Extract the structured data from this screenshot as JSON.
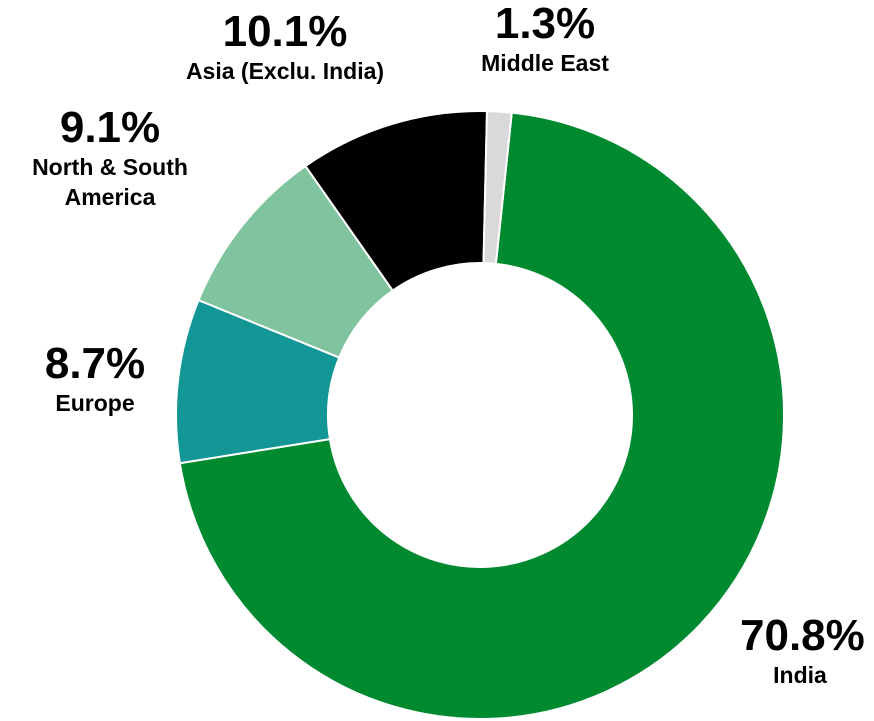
{
  "chart_data": {
    "type": "donut",
    "categories": [
      "India",
      "Europe",
      "North & South America",
      "Asia (Exclu. India)",
      "Middle East"
    ],
    "values": [
      70.8,
      8.7,
      9.1,
      10.1,
      1.3
    ],
    "value_labels": [
      "70.8%",
      "8.7%",
      "9.1%",
      "10.1%",
      "1.3%"
    ],
    "colors": [
      "#008a30",
      "#139696",
      "#80c49f",
      "#000000",
      "#d9d9d9"
    ]
  }
}
